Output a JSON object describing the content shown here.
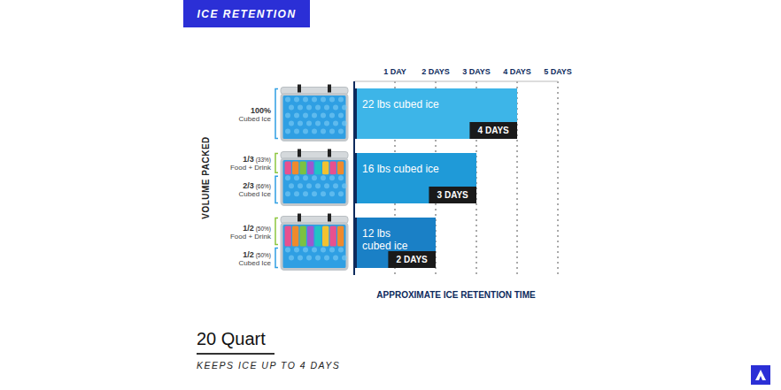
{
  "chart_data": {
    "type": "bar",
    "orientation": "horizontal",
    "header": "ICE RETENTION",
    "title": "20 Quart",
    "subtitle": "KEEPS ICE UP TO 4 DAYS",
    "y_label": "VOLUME PACKED",
    "x_label": "APPROXIMATE ICE RETENTION TIME",
    "categories": [
      [
        {
          "fraction": "100%",
          "percent": "",
          "content": "Cubed Ice"
        }
      ],
      [
        {
          "fraction": "1/3",
          "percent": "(33%)",
          "content": "Food + Drink"
        },
        {
          "fraction": "2/3",
          "percent": "(66%)",
          "content": "Cubed Ice"
        }
      ],
      [
        {
          "fraction": "1/2",
          "percent": "(50%)",
          "content": "Food + Drink"
        },
        {
          "fraction": "1/2",
          "percent": "(50%)",
          "content": "Cubed Ice"
        }
      ]
    ],
    "values": [
      4,
      3,
      2
    ],
    "value_labels": [
      "4 DAYS",
      "3 DAYS",
      "2 DAYS"
    ],
    "bar_texts": [
      "22 lbs cubed ice",
      "16 lbs cubed ice",
      "12 lbs cubed ice"
    ],
    "colors": [
      "#3db5e8",
      "#1f9ad8",
      "#1a80c6"
    ],
    "xlim": [
      0,
      5
    ],
    "xticks": [
      {
        "value": 1,
        "label": "1 DAY"
      },
      {
        "value": 2,
        "label": "2 DAYS"
      },
      {
        "value": 3,
        "label": "3 DAYS"
      },
      {
        "value": 4,
        "label": "4 DAYS"
      },
      {
        "value": 5,
        "label": "5 DAYS"
      }
    ],
    "grid": true,
    "data_labels": true
  }
}
